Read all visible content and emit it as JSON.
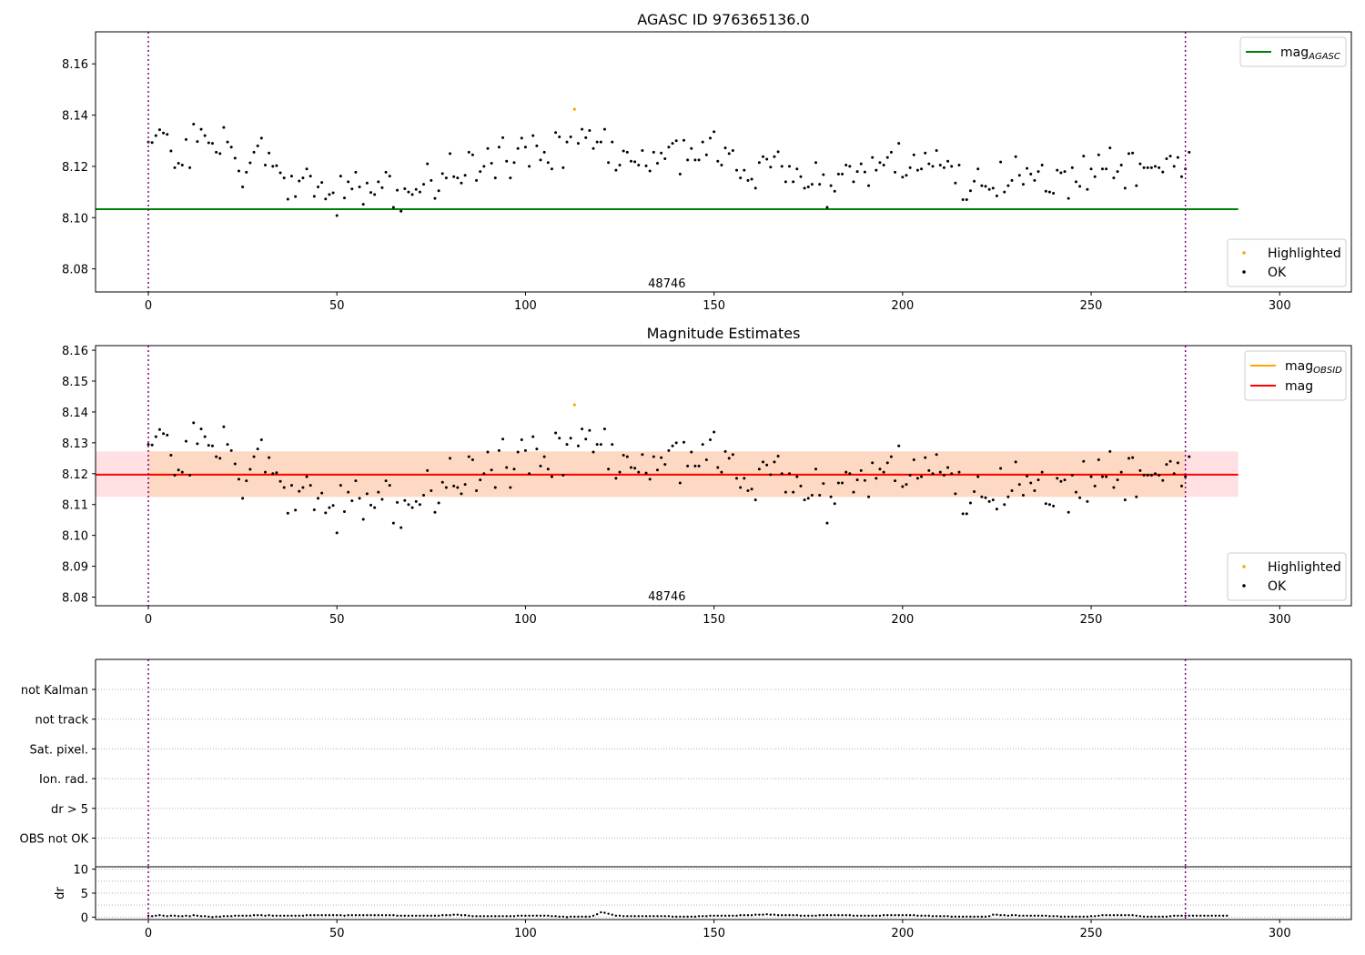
{
  "chart_data": [
    {
      "type": "scatter",
      "title": "AGASC ID 976365136.0",
      "xlim": [
        -14,
        319
      ],
      "ylim": [
        8.071,
        8.1725
      ],
      "xticks": [
        0,
        50,
        100,
        150,
        200,
        250,
        300
      ],
      "yticks": [
        8.08,
        8.1,
        8.12,
        8.14,
        8.16
      ],
      "ytick_decimals": 2,
      "obsid_annotation": {
        "text": "48746",
        "x": 137.5,
        "y": 8.0745
      },
      "vlines": [
        0,
        275
      ],
      "hlines": [
        {
          "y": 8.1033,
          "x0": -14,
          "x1": 289,
          "color": "#008000"
        }
      ],
      "line_legend": {
        "placement": "top-right",
        "entries": [
          {
            "base": "mag",
            "sub": "AGASC",
            "color": "#008000"
          }
        ]
      },
      "points_legend": {
        "placement": "bottom-right",
        "entries": [
          {
            "label": "Highlighted",
            "color": "#ffa500"
          },
          {
            "label": "OK",
            "color": "#000000"
          }
        ]
      },
      "highlighted": [
        {
          "x": 113,
          "y": 8.1423
        }
      ],
      "ok_series": "mag_series"
    },
    {
      "type": "scatter",
      "title": "Magnitude Estimates",
      "xlim": [
        -14,
        319
      ],
      "ylim": [
        8.0772,
        8.1615
      ],
      "xticks": [
        0,
        50,
        100,
        150,
        200,
        250,
        300
      ],
      "yticks": [
        8.08,
        8.09,
        8.1,
        8.11,
        8.12,
        8.13,
        8.14,
        8.15,
        8.16
      ],
      "ytick_decimals": 2,
      "obsid_annotation": {
        "text": "48746",
        "x": 137.5,
        "y": 8.0805
      },
      "vlines": [
        0,
        275
      ],
      "bands": [
        {
          "x0": -14,
          "x1": 289,
          "y0": 8.1125,
          "y1": 8.1272,
          "color": "#ffe0e3"
        },
        {
          "x0": 0,
          "x1": 275,
          "y0": 8.1125,
          "y1": 8.1272,
          "color": "#fdd9c4"
        }
      ],
      "hlines": [
        {
          "y": 8.1197,
          "x0": 0,
          "x1": 275,
          "color": "#ffa500"
        },
        {
          "y": 8.1197,
          "x0": -14,
          "x1": 289,
          "color": "#ff0000"
        }
      ],
      "line_legend": {
        "placement": "top-right",
        "entries": [
          {
            "base": "mag",
            "sub": "OBSID",
            "color": "#ffa500"
          },
          {
            "base": "mag",
            "sub": "",
            "color": "#ff0000"
          }
        ]
      },
      "points_legend": {
        "placement": "bottom-right",
        "entries": [
          {
            "label": "Highlighted",
            "color": "#ffa500"
          },
          {
            "label": "OK",
            "color": "#000000"
          }
        ]
      },
      "highlighted": [
        {
          "x": 113,
          "y": 8.1423
        }
      ],
      "ok_series": "mag_series"
    },
    {
      "type": "flags",
      "categories": [
        "not Kalman",
        "not track",
        "Sat. pixel.",
        "Ion. rad.",
        "dr > 5",
        "OBS not OK"
      ],
      "xlim": [
        -14,
        319
      ],
      "vlines": [
        0,
        275
      ],
      "grid": true
    },
    {
      "type": "scatter",
      "ylabel": "dr",
      "xlim": [
        -14,
        319
      ],
      "ylim": [
        -0.5,
        10.5
      ],
      "xticks": [
        0,
        50,
        100,
        150,
        200,
        250,
        300
      ],
      "yticks": [
        0,
        5,
        10
      ],
      "ytick_decimals": 0,
      "vlines": [
        0,
        275
      ],
      "grid": true,
      "dr_values": [
        0.3,
        0.2,
        0.3,
        0.4,
        0.3,
        0.2,
        0.3,
        0.3,
        0.2,
        0.2,
        0.3,
        0.2,
        0.4,
        0.3,
        0.2,
        0.2,
        0.1,
        0.0,
        0.1,
        0.1,
        0.2,
        0.2,
        0.2,
        0.3,
        0.3,
        0.3,
        0.3,
        0.3,
        0.4,
        0.4,
        0.4,
        0.3,
        0.4,
        0.3,
        0.3,
        0.3,
        0.3,
        0.3,
        0.3,
        0.3,
        0.3,
        0.3,
        0.4,
        0.4,
        0.4,
        0.4,
        0.4,
        0.4,
        0.4,
        0.4,
        0.4,
        0.4,
        0.3,
        0.4,
        0.4,
        0.4,
        0.4,
        0.4,
        0.4,
        0.4,
        0.4,
        0.4,
        0.4,
        0.4,
        0.4,
        0.4,
        0.3,
        0.3,
        0.3,
        0.3,
        0.3,
        0.3,
        0.3,
        0.3,
        0.3,
        0.3,
        0.3,
        0.3,
        0.4,
        0.4,
        0.4,
        0.5,
        0.5,
        0.4,
        0.4,
        0.3,
        0.2,
        0.2,
        0.2,
        0.2,
        0.2,
        0.2,
        0.2,
        0.2,
        0.2,
        0.2,
        0.2,
        0.2,
        0.3,
        0.3,
        0.3,
        0.3,
        0.3,
        0.3,
        0.3,
        0.3,
        0.3,
        0.2,
        0.2,
        0.1,
        0.1,
        0.0,
        0.1,
        0.1,
        0.1,
        0.1,
        0.1,
        0.1,
        0.3,
        0.6,
        1.0,
        0.9,
        0.7,
        0.5,
        0.3,
        0.3,
        0.2,
        0.2,
        0.2,
        0.2,
        0.2,
        0.2,
        0.2,
        0.2,
        0.2,
        0.2,
        0.2,
        0.2,
        0.2,
        0.1,
        0.1,
        0.1,
        0.1,
        0.1,
        0.1,
        0.1,
        0.2,
        0.2,
        0.2,
        0.3,
        0.3,
        0.3,
        0.3,
        0.3,
        0.3,
        0.3,
        0.3,
        0.4,
        0.4,
        0.4,
        0.4,
        0.5,
        0.5,
        0.5,
        0.6,
        0.5,
        0.5,
        0.4,
        0.4,
        0.4,
        0.4,
        0.4,
        0.4,
        0.3,
        0.3,
        0.3,
        0.3,
        0.3,
        0.4,
        0.4,
        0.4,
        0.4,
        0.4,
        0.4,
        0.4,
        0.4,
        0.4,
        0.3,
        0.3,
        0.3,
        0.3,
        0.3,
        0.3,
        0.3,
        0.3,
        0.4,
        0.4,
        0.4,
        0.4,
        0.4,
        0.4,
        0.4,
        0.4,
        0.4,
        0.3,
        0.3,
        0.3,
        0.3,
        0.2,
        0.2,
        0.2,
        0.2,
        0.2,
        0.1,
        0.1,
        0.1,
        0.1,
        0.1,
        0.1,
        0.1,
        0.1,
        0.1,
        0.1,
        0.2,
        0.5,
        0.5,
        0.4,
        0.4,
        0.3,
        0.4,
        0.4,
        0.3,
        0.3,
        0.3,
        0.3,
        0.3,
        0.3,
        0.3,
        0.3,
        0.2,
        0.2,
        0.2,
        0.1,
        0.1,
        0.1,
        0.1,
        0.1,
        0.1,
        0.1,
        0.1,
        0.2,
        0.2,
        0.3,
        0.4,
        0.4,
        0.4,
        0.4,
        0.4,
        0.4,
        0.4,
        0.4,
        0.4,
        0.3,
        0.2,
        0.1,
        0.1,
        0.1,
        0.1,
        0.1,
        0.1,
        0.1,
        0.2,
        0.3,
        0.3,
        0.3,
        0.3,
        0.3,
        0.3,
        0.3,
        0.3,
        0.3,
        0.3,
        0.3,
        0.3,
        0.3,
        0.3,
        0.3
      ]
    }
  ],
  "mag_series": [
    8.1295,
    8.1293,
    8.132,
    8.1343,
    8.133,
    8.1325,
    8.126,
    8.1195,
    8.1212,
    8.1205,
    8.1305,
    8.1195,
    8.1365,
    8.1297,
    8.1345,
    8.132,
    8.1292,
    8.129,
    8.1255,
    8.125,
    8.1352,
    8.1295,
    8.1275,
    8.1232,
    8.1182,
    8.112,
    8.1177,
    8.1214,
    8.1255,
    8.128,
    8.131,
    8.1205,
    8.1252,
    8.12,
    8.1203,
    8.1175,
    8.1155,
    8.1072,
    8.1162,
    8.1082,
    8.1143,
    8.1155,
    8.119,
    8.1162,
    8.1083,
    8.112,
    8.1137,
    8.1073,
    8.109,
    8.1097,
    8.1008,
    8.1162,
    8.1077,
    8.114,
    8.1112,
    8.1177,
    8.112,
    8.1052,
    8.1135,
    8.1098,
    8.109,
    8.114,
    8.1117,
    8.1177,
    8.1162,
    8.104,
    8.1107,
    8.1025,
    8.1113,
    8.11,
    8.109,
    8.111,
    8.11,
    8.113,
    8.121,
    8.1145,
    8.1075,
    8.1105,
    8.1172,
    8.1155,
    8.125,
    8.116,
    8.1155,
    8.1135,
    8.1165,
    8.1255,
    8.1245,
    8.1145,
    8.118,
    8.12,
    8.127,
    8.1212,
    8.1155,
    8.1275,
    8.1312,
    8.122,
    8.1155,
    8.1215,
    8.127,
    8.131,
    8.1275,
    8.12,
    8.132,
    8.128,
    8.1225,
    8.1255,
    8.1215,
    8.119,
    8.1332,
    8.1315,
    8.1195,
    8.1295,
    8.1315,
    8.1423,
    8.129,
    8.1345,
    8.1312,
    8.134,
    8.127,
    8.1295,
    8.1295,
    8.1345,
    8.1215,
    8.1295,
    8.1185,
    8.1205,
    8.126,
    8.1255,
    8.122,
    8.1218,
    8.1205,
    8.1262,
    8.1202,
    8.1182,
    8.1255,
    8.1212,
    8.1252,
    8.123,
    8.1275,
    8.129,
    8.13,
    8.117,
    8.1302,
    8.1225,
    8.127,
    8.1225,
    8.1225,
    8.1295,
    8.1245,
    8.131,
    8.1335,
    8.122,
    8.1205,
    8.1272,
    8.125,
    8.1262,
    8.1185,
    8.1155,
    8.1185,
    8.1145,
    8.115,
    8.1115,
    8.1215,
    8.1238,
    8.1228,
    8.1197,
    8.1238,
    8.1257,
    8.12,
    8.114,
    8.12,
    8.114,
    8.119,
    8.116,
    8.1115,
    8.112,
    8.113,
    8.1215,
    8.113,
    8.1168,
    8.104,
    8.1125,
    8.1103,
    8.117,
    8.117,
    8.1205,
    8.12,
    8.114,
    8.118,
    8.121,
    8.1178,
    8.1125,
    8.1235,
    8.1185,
    8.1215,
    8.1205,
    8.1235,
    8.1255,
    8.1177,
    8.129,
    8.1158,
    8.1165,
    8.1195,
    8.1245,
    8.1185,
    8.119,
    8.1252,
    8.121,
    8.12,
    8.1262,
    8.1205,
    8.1195,
    8.122,
    8.12,
    8.1135,
    8.1205,
    8.107,
    8.107,
    8.1105,
    8.1142,
    8.119,
    8.1125,
    8.1122,
    8.111,
    8.1115,
    8.1085,
    8.1217,
    8.11,
    8.1125,
    8.1145,
    8.1238,
    8.1165,
    8.113,
    8.1192,
    8.117,
    8.1145,
    8.118,
    8.1205,
    8.1103,
    8.11,
    8.1095,
    8.1185,
    8.1175,
    8.118,
    8.1075,
    8.1195,
    8.114,
    8.1122,
    8.124,
    8.111,
    8.119,
    8.116,
    8.1245,
    8.119,
    8.119,
    8.1272,
    8.1155,
    8.118,
    8.1205,
    8.1115,
    8.125,
    8.1252,
    8.1125,
    8.121,
    8.1195,
    8.1195,
    8.1195,
    8.12,
    8.1195,
    8.1178,
    8.123,
    8.124,
    8.12,
    8.1235,
    8.116,
    8.119,
    8.1255
  ]
}
